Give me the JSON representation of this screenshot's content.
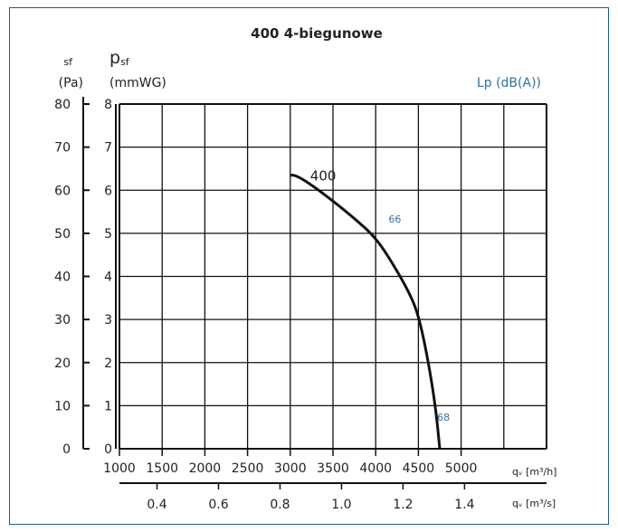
{
  "chart_data": {
    "type": "line",
    "title": "400 4-biegunowe",
    "y_left": {
      "symbol": "sf",
      "unit": "(Pa)",
      "ticks": [
        "0",
        "10",
        "20",
        "30",
        "40",
        "50",
        "60",
        "70",
        "80"
      ],
      "range": [
        0,
        80
      ]
    },
    "y_inner": {
      "symbol": "p",
      "subscript": "sf",
      "unit": "(mmWG)",
      "ticks": [
        "0",
        "1",
        "2",
        "3",
        "4",
        "5",
        "6",
        "7",
        "8"
      ],
      "range": [
        0,
        8
      ]
    },
    "right_label": "Lp (dB(A))",
    "x_top": {
      "label": "qᵥ [m³/h]",
      "ticks": [
        "1000",
        "1500",
        "2000",
        "2500",
        "3000",
        "3500",
        "4000",
        "4500",
        "5000"
      ],
      "range": [
        1000,
        6000
      ]
    },
    "x_bottom": {
      "label": "qᵥ [m³/s]",
      "ticks": [
        "0.4",
        "0.6",
        "0.8",
        "1.0",
        "1.2",
        "1.4"
      ]
    },
    "grid": true,
    "series": [
      {
        "name": "400",
        "x": [
          3000,
          3050,
          3150,
          3300,
          3500,
          3750,
          4000,
          4200,
          4400,
          4500,
          4600,
          4700,
          4750
        ],
        "y": [
          6.35,
          6.35,
          6.25,
          6.05,
          5.75,
          5.35,
          4.9,
          4.3,
          3.6,
          3.1,
          2.2,
          1.0,
          0
        ]
      }
    ],
    "annotations": [
      {
        "text": "66",
        "x": 4150,
        "y": 5.25
      },
      {
        "text": "68",
        "x": 4720,
        "y": 0.65
      }
    ]
  }
}
